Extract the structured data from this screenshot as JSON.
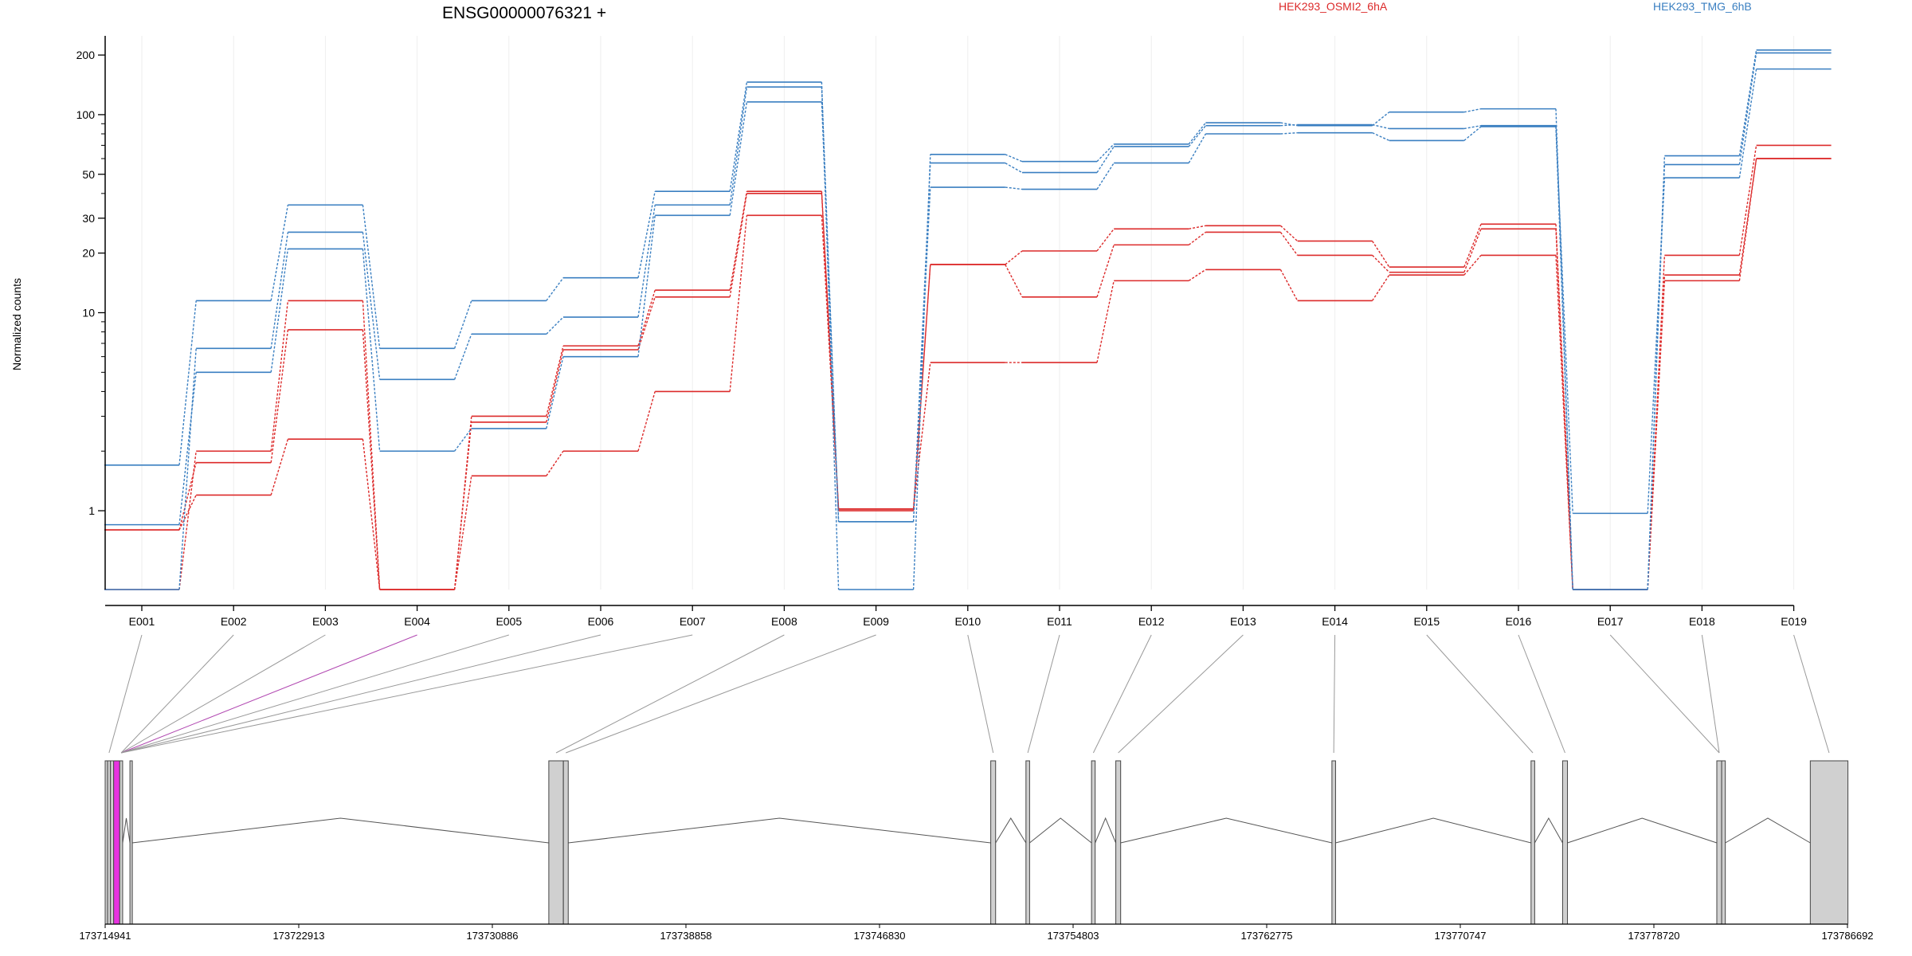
{
  "chart_data": {
    "type": "line",
    "title": "ENSG00000076321 +",
    "ylabel": "Normalized counts",
    "yscale": "log",
    "ylim": [
      0.4,
      250
    ],
    "grid": "vertical",
    "legend_placement": "top-right",
    "yticks": [
      1,
      10,
      20,
      30,
      50,
      100,
      200
    ],
    "yticks_minor": [
      2,
      3,
      4,
      5,
      6,
      7,
      8,
      9,
      40,
      60,
      70,
      80,
      90
    ],
    "categories": [
      "E001",
      "E002",
      "E003",
      "E004",
      "E005",
      "E006",
      "E007",
      "E008",
      "E009",
      "E010",
      "E011",
      "E012",
      "E013",
      "E014",
      "E015",
      "E016",
      "E017",
      "E018",
      "E019"
    ],
    "colors": {
      "HEK293_OSMI2_6hA": "#dc2a2a",
      "HEK293_TMG_6hB": "#3a7fc1"
    },
    "series": [
      {
        "name": "HEK293_OSMI2_6hA",
        "values": [
          0.8,
          1.2,
          2.3,
          0.4,
          1.5,
          2.0,
          4.0,
          31,
          1.02,
          5.6,
          5.6,
          14.5,
          16.5,
          11.5,
          15.5,
          19.5,
          0.4,
          14.5,
          60
        ]
      },
      {
        "name": "HEK293_OSMI2_6hA",
        "values": [
          0.8,
          1.75,
          8.2,
          0.4,
          2.8,
          6.5,
          12,
          40,
          1.02,
          17.5,
          12,
          22,
          25.5,
          19.5,
          16,
          26.5,
          0.4,
          15.5,
          60
        ]
      },
      {
        "name": "HEK293_OSMI2_6hA",
        "values": [
          0.4,
          2.0,
          11.5,
          0.4,
          3.0,
          6.8,
          13,
          41,
          1.0,
          17.5,
          20.5,
          26.5,
          27.5,
          23,
          17,
          28,
          0.4,
          19.5,
          70
        ]
      },
      {
        "name": "HEK293_TMG_6hB",
        "values": [
          0.85,
          5.0,
          21,
          2.0,
          2.6,
          6.0,
          31,
          116,
          0.88,
          43,
          42,
          57,
          80,
          81,
          74,
          87,
          0.97,
          48,
          170
        ]
      },
      {
        "name": "HEK293_TMG_6hB",
        "values": [
          0.4,
          6.6,
          25.5,
          4.6,
          7.8,
          9.5,
          35,
          138,
          0.88,
          57,
          51,
          69,
          88,
          89,
          85,
          88,
          0.4,
          56,
          205
        ]
      },
      {
        "name": "HEK293_TMG_6hB",
        "values": [
          1.7,
          11.5,
          35,
          6.6,
          11.5,
          15,
          41,
          146,
          0.4,
          63,
          58,
          71,
          91,
          88,
          103,
          107,
          0.4,
          62,
          212
        ]
      }
    ],
    "gene_model": {
      "coordinate_ticks": [
        "173714941",
        "173722913",
        "173730886",
        "173738858",
        "173746830",
        "173754803",
        "173762775",
        "173770747",
        "173778720",
        "173786692"
      ],
      "xlim": [
        173714941,
        173786692
      ],
      "highlighted_exon": "E004",
      "exons": [
        {
          "start": 173714941,
          "end": 173715041
        },
        {
          "start": 173715041,
          "end": 173715161
        },
        {
          "start": 173715161,
          "end": 173715291
        },
        {
          "start": 173715291,
          "end": 173715541
        },
        {
          "start": 173715541,
          "end": 173715661
        },
        {
          "start": 173715961,
          "end": 173716051
        },
        {
          "start": 173733211,
          "end": 173733811
        },
        {
          "start": 173733811,
          "end": 173734011
        },
        {
          "start": 173751411,
          "end": 173751611
        },
        {
          "start": 173752861,
          "end": 173753011
        },
        {
          "start": 173755561,
          "end": 173755711
        },
        {
          "start": 173756561,
          "end": 173756761
        },
        {
          "start": 173765461,
          "end": 173765611
        },
        {
          "start": 173773661,
          "end": 173773811
        },
        {
          "start": 173774961,
          "end": 173775161
        },
        {
          "start": 173781311,
          "end": 173781511
        },
        {
          "start": 173781511,
          "end": 173781661
        },
        {
          "start": 173785161,
          "end": 173786711
        }
      ],
      "intron_peaks": [
        [
          173716051,
          173733211,
          173724631
        ],
        [
          173734011,
          173751411,
          173742711
        ],
        [
          173751611,
          173752861,
          173752236
        ],
        [
          173753011,
          173755561,
          173754286
        ],
        [
          173755711,
          173756561,
          173756136
        ],
        [
          173756761,
          173765461,
          173761111
        ],
        [
          173765611,
          173773661,
          173769636
        ],
        [
          173773811,
          173774961,
          173774386
        ],
        [
          173775161,
          173781311,
          173778236
        ],
        [
          173781661,
          173785161,
          173783411
        ]
      ],
      "mini_introns": [
        [
          173715041,
          173715161,
          173715101
        ],
        [
          173715661,
          173715961,
          173715811
        ]
      ],
      "exon_links": [
        1,
        4,
        4,
        4,
        4,
        4,
        4,
        6,
        7,
        8,
        9,
        10,
        11,
        12,
        13,
        14,
        15,
        15,
        17
      ]
    }
  }
}
